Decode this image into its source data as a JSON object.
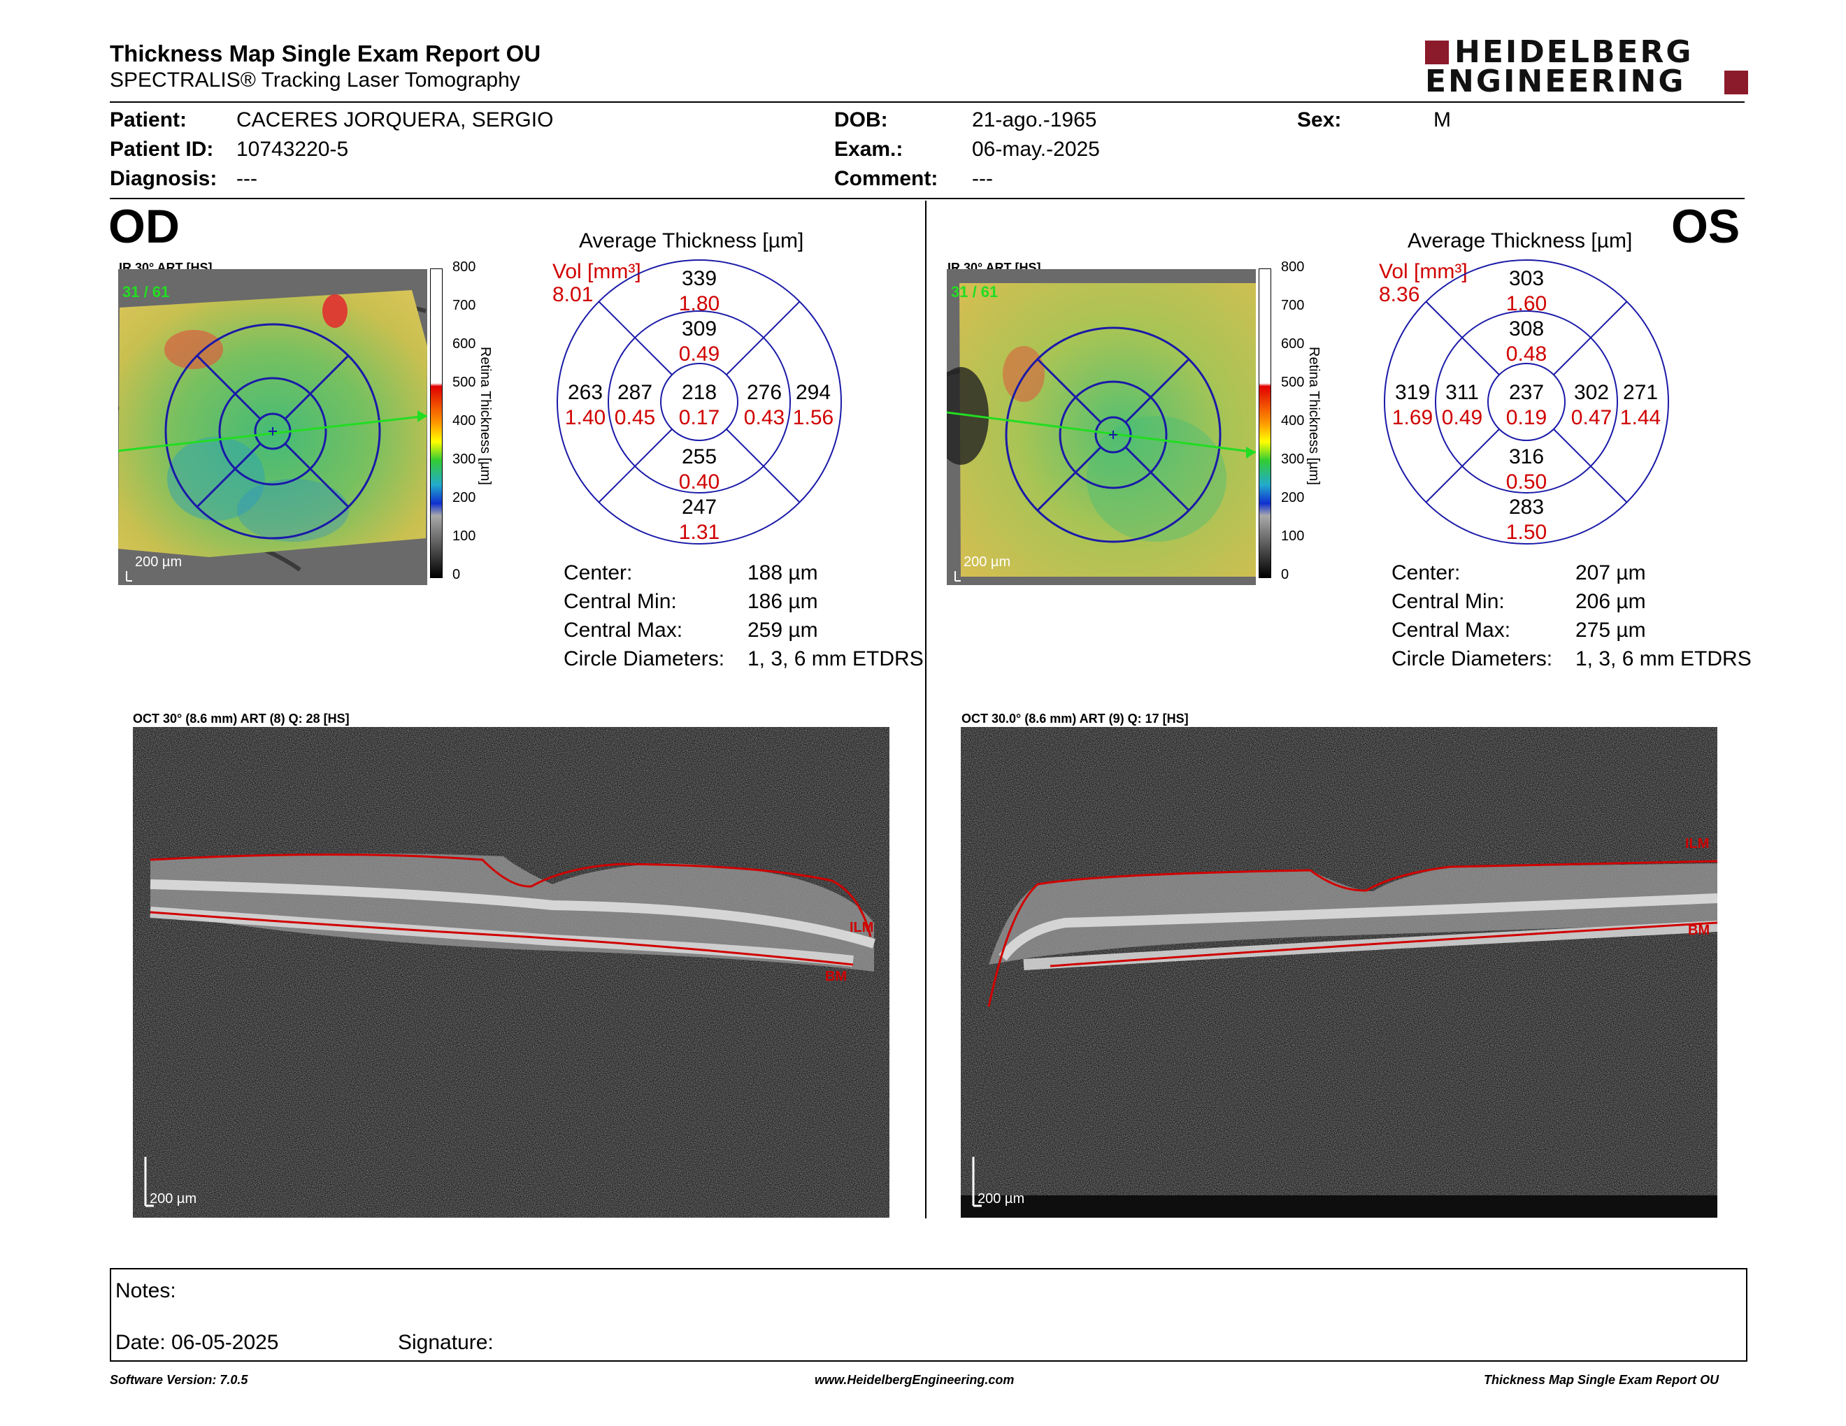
{
  "header": {
    "title": "Thickness Map Single Exam Report OU",
    "subtitle": "SPECTRALIS® Tracking Laser Tomography",
    "logo_line1": "HEIDELBERG",
    "logo_line2": "ENGINEERING"
  },
  "patient": {
    "patient_label": "Patient:",
    "patient_value": "CACERES JORQUERA, SERGIO",
    "id_label": "Patient ID:",
    "id_value": "10743220-5",
    "diagnosis_label": "Diagnosis:",
    "diagnosis_value": "---",
    "dob_label": "DOB:",
    "dob_value": "21-ago.-1965",
    "exam_label": "Exam.:",
    "exam_value": "06-may.-2025",
    "comment_label": "Comment:",
    "comment_value": "---",
    "sex_label": "Sex:",
    "sex_value": "M"
  },
  "colorbar": {
    "ticks": [
      "800",
      "700",
      "600",
      "500",
      "400",
      "300",
      "200",
      "100",
      "0"
    ],
    "label": "Retina Thickness [µm]"
  },
  "od": {
    "eye": "OD",
    "ir_caption": "IR 30° ART [HS]",
    "frames": "31 / 61",
    "scale": "200 µm",
    "avg_title": "Average Thickness [µm]",
    "vol_label": "Vol [mm³]",
    "vol_total": "8.01",
    "etdrs": {
      "center": [
        "218",
        "0.17"
      ],
      "inner_sup": [
        "309",
        "0.49"
      ],
      "outer_sup": [
        "339",
        "1.80"
      ],
      "inner_inf": [
        "255",
        "0.40"
      ],
      "outer_inf": [
        "247",
        "1.31"
      ],
      "outer_left": [
        "263",
        "1.40"
      ],
      "inner_left": [
        "287",
        "0.45"
      ],
      "inner_right": [
        "276",
        "0.43"
      ],
      "outer_right": [
        "294",
        "1.56"
      ]
    },
    "stats": {
      "center_label": "Center:",
      "center_value": "188 µm",
      "min_label": "Central Min:",
      "min_value": "186 µm",
      "max_label": "Central Max:",
      "max_value": "259 µm",
      "diam_label": "Circle Diameters:",
      "diam_value": "1, 3, 6 mm ETDRS"
    },
    "oct_caption": "OCT 30° (8.6 mm) ART (8) Q: 28 [HS]",
    "oct_scale": "200 µm",
    "ilm": "ILM",
    "bm": "BM"
  },
  "os": {
    "eye": "OS",
    "ir_caption": "IR 30° ART [HS]",
    "frames": "31 / 61",
    "scale": "200 µm",
    "avg_title": "Average Thickness [µm]",
    "vol_label": "Vol [mm³]",
    "vol_total": "8.36",
    "etdrs": {
      "center": [
        "237",
        "0.19"
      ],
      "inner_sup": [
        "308",
        "0.48"
      ],
      "outer_sup": [
        "303",
        "1.60"
      ],
      "inner_inf": [
        "316",
        "0.50"
      ],
      "outer_inf": [
        "283",
        "1.50"
      ],
      "outer_left": [
        "319",
        "1.69"
      ],
      "inner_left": [
        "311",
        "0.49"
      ],
      "inner_right": [
        "302",
        "0.47"
      ],
      "outer_right": [
        "271",
        "1.44"
      ]
    },
    "stats": {
      "center_label": "Center:",
      "center_value": "207 µm",
      "min_label": "Central Min:",
      "min_value": "206 µm",
      "max_label": "Central Max:",
      "max_value": "275 µm",
      "diam_label": "Circle Diameters:",
      "diam_value": "1, 3, 6 mm ETDRS"
    },
    "oct_caption": "OCT 30.0° (8.6 mm) ART (9) Q: 17 [HS]",
    "oct_scale": "200 µm",
    "ilm": "ILM",
    "bm": "BM"
  },
  "notes": {
    "notes_label": "Notes:",
    "date_label": "Date: 06-05-2025",
    "signature_label": "Signature:"
  },
  "footer": {
    "software": "Software Version: 7.0.5",
    "website": "www.HeidelbergEngineering.com",
    "report": "Thickness Map Single Exam Report OU"
  },
  "colors": {
    "overlay_red": "#d00000",
    "grid_blue": "#1a1aa8",
    "brand": "#8b1a2b"
  }
}
